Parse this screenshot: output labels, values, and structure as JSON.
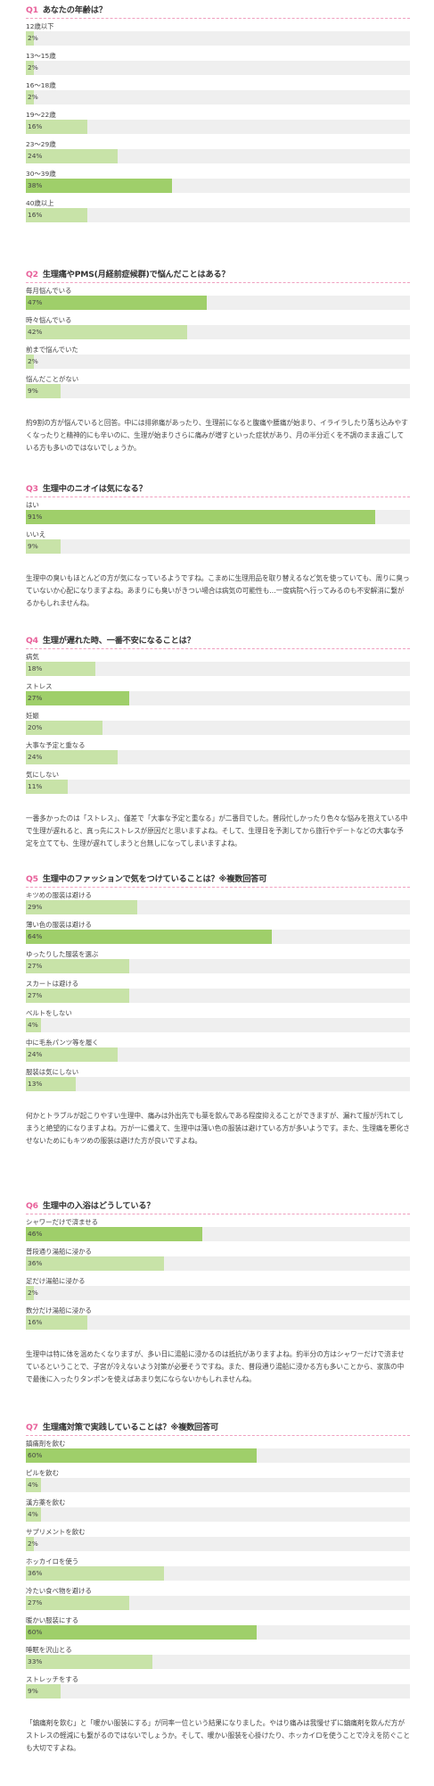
{
  "colors": {
    "top": "#9fcf6a",
    "other": "#c8e3a8",
    "track": "#efefef",
    "accent": "#e8609a"
  },
  "questions": [
    {
      "num": "Q1",
      "title": "あなたの年齢は？",
      "options": [
        {
          "label": "12歳以下",
          "value": 2,
          "pct": "2%"
        },
        {
          "label": "13～15歳",
          "value": 2,
          "pct": "2%"
        },
        {
          "label": "16～18歳",
          "value": 2,
          "pct": "2%"
        },
        {
          "label": "19～22歳",
          "value": 16,
          "pct": "16%"
        },
        {
          "label": "23～29歳",
          "value": 24,
          "pct": "24%"
        },
        {
          "label": "30～39歳",
          "value": 38,
          "pct": "38%",
          "top": true
        },
        {
          "label": "40歳以上",
          "value": 16,
          "pct": "16%"
        }
      ],
      "comment": ""
    },
    {
      "num": "Q2",
      "title": "生理痛やPMS(月経前症候群)で悩んだことはある？",
      "options": [
        {
          "label": "毎月悩んでいる",
          "value": 47,
          "pct": "47%",
          "top": true
        },
        {
          "label": "時々悩んでいる",
          "value": 42,
          "pct": "42%"
        },
        {
          "label": "前まで悩んでいた",
          "value": 2,
          "pct": "2%"
        },
        {
          "label": "悩んだことがない",
          "value": 9,
          "pct": "9%"
        }
      ],
      "comment": "約9割の方が悩んでいると回答。中には排卵痛があったり、生理前になると腹痛や腰痛が始まり、イライラしたり落ち込みやすくなったりと精神的にも辛いのに、生理が始まりさらに痛みが増すといった症状があり、月の半分近くを不調のまま過ごしている方も多いのではないでしょうか。"
    },
    {
      "num": "Q3",
      "title": "生理中のニオイは気になる？",
      "options": [
        {
          "label": "はい",
          "value": 91,
          "pct": "91%",
          "top": true
        },
        {
          "label": "いいえ",
          "value": 9,
          "pct": "9%"
        }
      ],
      "comment": "生理中の臭いもほとんどの方が気になっているようですね。こまめに生理用品を取り替えるなど気を使っていても、周りに臭っていないか心配になりますよね。あまりにも臭いがきつい場合は病気の可能性も…一度病院へ行ってみるのも不安解消に繋がるかもしれませんね。"
    },
    {
      "num": "Q4",
      "title": "生理が遅れた時、一番不安になることは？",
      "options": [
        {
          "label": "病気",
          "value": 18,
          "pct": "18%"
        },
        {
          "label": "ストレス",
          "value": 27,
          "pct": "27%",
          "top": true
        },
        {
          "label": "妊娠",
          "value": 20,
          "pct": "20%"
        },
        {
          "label": "大事な予定と重なる",
          "value": 24,
          "pct": "24%"
        },
        {
          "label": "気にしない",
          "value": 11,
          "pct": "11%"
        }
      ],
      "comment": "一番多かったのは「ストレス」、僅差で「大事な予定と重なる」が二番目でした。普段忙しかったり色々な悩みを抱えている中で生理が遅れると、真っ先にストレスが原因だと思いますよね。そして、生理日を予測してから旅行やデートなどの大事な予定を立てても、生理が遅れてしまうと台無しになってしまいますよね。"
    },
    {
      "num": "Q5",
      "title": "生理中のファッションで気をつけていることは？※複数回答可",
      "options": [
        {
          "label": "キツめの服装は避ける",
          "value": 29,
          "pct": "29%"
        },
        {
          "label": "薄い色の服装は避ける",
          "value": 64,
          "pct": "64%",
          "top": true
        },
        {
          "label": "ゆったりした服装を選ぶ",
          "value": 27,
          "pct": "27%"
        },
        {
          "label": "スカートは避ける",
          "value": 27,
          "pct": "27%"
        },
        {
          "label": "ベルトをしない",
          "value": 4,
          "pct": "4%"
        },
        {
          "label": "中に毛糸パンツ等を履く",
          "value": 24,
          "pct": "24%"
        },
        {
          "label": "服装は気にしない",
          "value": 13,
          "pct": "13%"
        }
      ],
      "comment": "何かとトラブルが起こりやすい生理中、痛みは外出先でも薬を飲んである程度抑えることができますが、漏れて服が汚れてしまうと絶望的になりますよね。万が一に備えて、生理中は薄い色の服装は避けている方が多いようです。また、生理痛を悪化させないためにもキツめの服装は避けた方が良いですよね。"
    },
    {
      "num": "Q6",
      "title": "生理中の入浴はどうしている？",
      "options": [
        {
          "label": "シャワーだけで済ませる",
          "value": 46,
          "pct": "46%",
          "top": true
        },
        {
          "label": "普段通り湯船に浸かる",
          "value": 36,
          "pct": "36%"
        },
        {
          "label": "足だけ湯船に浸かる",
          "value": 2,
          "pct": "2%"
        },
        {
          "label": "数分だけ湯船に浸かる",
          "value": 16,
          "pct": "16%"
        }
      ],
      "comment": "生理中は特に体を温めたくなりますが、多い日に湯船に浸かるのは抵抗がありますよね。約半分の方はシャワーだけで済ませているということで、子宮が冷えないよう対策が必要そうですね。また、普段通り湯船に浸かる方も多いことから、家族の中で最後に入ったりタンポンを使えばあまり気にならないかもしれませんね。"
    },
    {
      "num": "Q7",
      "title": "生理痛対策で実践していることは？※複数回答可",
      "options": [
        {
          "label": "鎮痛剤を飲む",
          "value": 60,
          "pct": "60%",
          "top": true
        },
        {
          "label": "ピルを飲む",
          "value": 4,
          "pct": "4%"
        },
        {
          "label": "漢方薬を飲む",
          "value": 4,
          "pct": "4%"
        },
        {
          "label": "サプリメントを飲む",
          "value": 2,
          "pct": "2%"
        },
        {
          "label": "ホッカイロを使う",
          "value": 36,
          "pct": "36%"
        },
        {
          "label": "冷たい食べ物を避ける",
          "value": 27,
          "pct": "27%"
        },
        {
          "label": "暖かい服装にする",
          "value": 60,
          "pct": "60%",
          "top": true
        },
        {
          "label": "睡眠を沢山とる",
          "value": 33,
          "pct": "33%"
        },
        {
          "label": "ストレッチをする",
          "value": 9,
          "pct": "9%"
        }
      ],
      "comment": "「鎮痛剤を飲む」と「暖かい服装にする」が同率一位という結果になりました。やはり痛みは我慢せずに鎮痛剤を飲んだ方がストレスの軽減にも繋がるのではないでしょうか。そして、暖かい服装を心掛けたり、ホッカイロを使うことで冷えを防ぐことも大切ですよね。"
    }
  ]
}
